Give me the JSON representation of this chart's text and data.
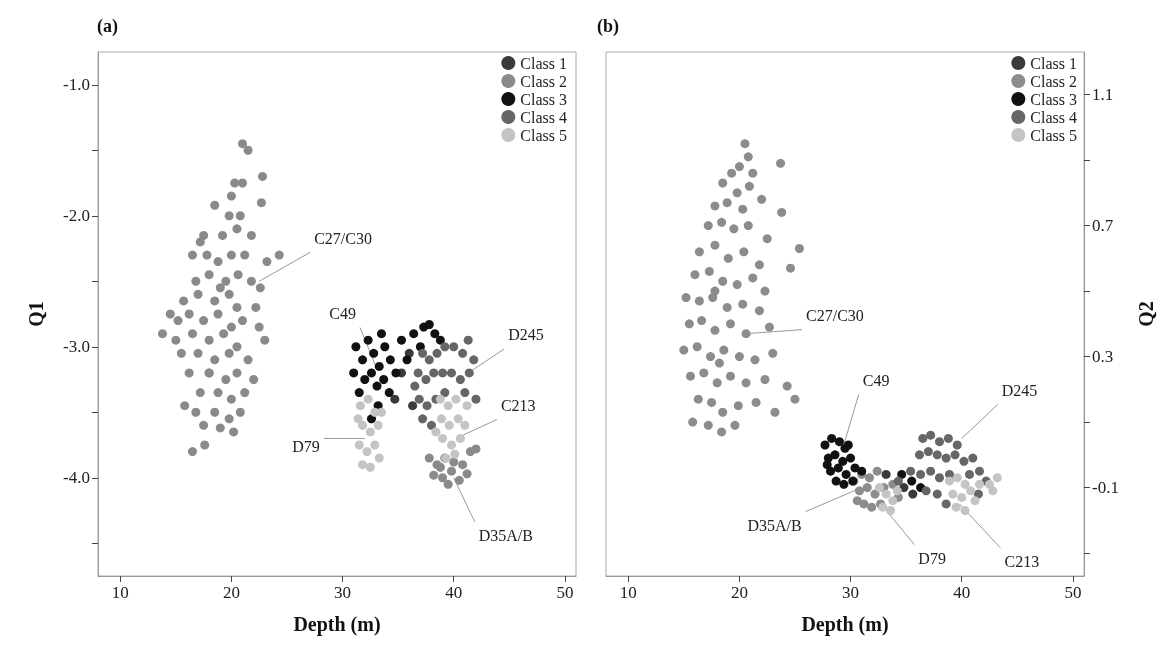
{
  "chart_data": [
    {
      "type": "scatter",
      "title": "(a)",
      "xlabel": "Depth (m)",
      "ylabel": "Q1",
      "legend": "top right",
      "marker": "circle",
      "xlim": [
        8,
        51
      ],
      "xticks": [
        10,
        20,
        30,
        40,
        50
      ],
      "ylim": [
        -4.75,
        -0.75
      ],
      "yticks": [
        {
          "value": -1,
          "label": "-1.0"
        },
        {
          "value": -1.5,
          "label": null
        },
        {
          "value": -2,
          "label": "-2.0"
        },
        {
          "value": -2.5,
          "label": null
        },
        {
          "value": -3,
          "label": "-3.0"
        },
        {
          "value": -3.5,
          "label": null
        },
        {
          "value": -4,
          "label": "-4.0"
        },
        {
          "value": -4.5,
          "label": null
        }
      ],
      "series": [
        {
          "name": "Class 1",
          "color": "#3a3a3a",
          "x": [
            35.3,
            36,
            34.7,
            36.3
          ],
          "values": [
            -3.2,
            -3.05,
            -3.4,
            -3.45
          ]
        },
        {
          "name": "Class 2",
          "color": "#8a8a8a",
          "x": [
            21,
            21.5,
            20.3,
            21,
            22.8,
            20,
            22.7,
            18.5,
            19.8,
            20.8,
            17.2,
            19.2,
            20.5,
            21.8,
            16.5,
            17.8,
            18.8,
            20,
            21.2,
            23.2,
            24.3,
            16.8,
            18,
            19.5,
            20.6,
            21.8,
            22.6,
            15.7,
            17,
            18.5,
            19.8,
            20.5,
            22.2,
            14.5,
            15.2,
            16.2,
            17.5,
            18.8,
            20,
            21,
            22.5,
            13.8,
            15,
            16.5,
            18,
            19.3,
            20.5,
            23,
            15.5,
            17,
            18.5,
            19.8,
            21.5,
            16.2,
            18,
            19.5,
            20.5,
            22,
            17.2,
            18.8,
            20,
            21.2,
            16.8,
            18.5,
            19.8,
            20.8,
            15.8,
            17.5,
            19,
            20.2,
            16.5,
            17.6,
            18,
            19,
            17.5,
            37.8,
            38.5,
            39.2,
            40,
            40.8,
            41.5,
            38.2,
            39,
            39.8,
            40.5,
            41.2,
            39.5,
            38.8,
            42
          ],
          "values": [
            -1.45,
            -1.5,
            -1.75,
            -1.75,
            -1.7,
            -1.85,
            -1.9,
            -1.92,
            -2,
            -2,
            -2.2,
            -2.15,
            -2.1,
            -2.15,
            -2.3,
            -2.3,
            -2.35,
            -2.3,
            -2.3,
            -2.35,
            -2.3,
            -2.5,
            -2.45,
            -2.5,
            -2.45,
            -2.5,
            -2.55,
            -2.65,
            -2.6,
            -2.65,
            -2.6,
            -2.7,
            -2.7,
            -2.75,
            -2.8,
            -2.75,
            -2.8,
            -2.75,
            -2.85,
            -2.8,
            -2.85,
            -2.9,
            -2.95,
            -2.9,
            -2.95,
            -2.9,
            -3,
            -2.95,
            -3.05,
            -3.05,
            -3.1,
            -3.05,
            -3.1,
            -3.2,
            -3.2,
            -3.25,
            -3.2,
            -3.25,
            -3.35,
            -3.35,
            -3.4,
            -3.35,
            -3.5,
            -3.5,
            -3.55,
            -3.5,
            -3.45,
            -3.6,
            -3.62,
            -3.65,
            -3.8,
            -3.75,
            -3.2,
            -2.55,
            -2.15,
            -3.85,
            -3.9,
            -3.85,
            -3.88,
            -3.9,
            -3.8,
            -3.98,
            -4,
            -3.95,
            -4.02,
            -3.97,
            -4.05,
            -3.92,
            -3.78
          ]
        },
        {
          "name": "Class 3",
          "color": "#111111",
          "x": [
            31.2,
            31.8,
            32.3,
            32.8,
            33.3,
            33.8,
            34.3,
            34.8,
            32,
            32.6,
            33.1,
            33.7,
            34.2,
            31.5,
            33.2,
            32.6,
            35.3,
            36.4,
            37.3,
            37.8,
            38.3,
            37,
            38.8,
            35.8,
            31,
            33.5
          ],
          "values": [
            -3,
            -3.1,
            -2.95,
            -3.05,
            -3.15,
            -3,
            -3.1,
            -3.2,
            -3.25,
            -3.2,
            -3.3,
            -3.25,
            -3.35,
            -3.35,
            -3.45,
            -3.55,
            -2.95,
            -2.9,
            -2.85,
            -2.83,
            -2.9,
            -3,
            -2.95,
            -3.1,
            -3.2,
            -2.9
          ]
        },
        {
          "name": "Class 4",
          "color": "#666666",
          "x": [
            37.2,
            37.8,
            38.5,
            39.2,
            40,
            40.8,
            41.3,
            36.8,
            37.5,
            38.2,
            39,
            39.8,
            40.6,
            41.4,
            36.9,
            37.6,
            38.4,
            39.2,
            41,
            37.2,
            38,
            36.5,
            41.8,
            42
          ],
          "values": [
            -3.05,
            -3.1,
            -3.05,
            -3,
            -3,
            -3.05,
            -2.95,
            -3.2,
            -3.25,
            -3.2,
            -3.2,
            -3.2,
            -3.25,
            -3.2,
            -3.4,
            -3.45,
            -3.4,
            -3.35,
            -3.35,
            -3.55,
            -3.6,
            -3.3,
            -3.1,
            -3.4
          ]
        },
        {
          "name": "Class 5",
          "color": "#c4c4c4",
          "x": [
            31.6,
            32.3,
            32.9,
            31.8,
            32.5,
            33.2,
            31.5,
            32.2,
            32.9,
            31.8,
            32.5,
            33.3,
            33.5,
            31.4,
            38.8,
            39.5,
            40.2,
            38.9,
            39.6,
            40.4,
            39,
            39.8,
            40.6,
            39.3,
            40.1,
            41,
            38.4,
            41.2
          ],
          "values": [
            -3.45,
            -3.4,
            -3.5,
            -3.6,
            -3.65,
            -3.6,
            -3.75,
            -3.8,
            -3.75,
            -3.9,
            -3.92,
            -3.85,
            -3.5,
            -3.55,
            -3.4,
            -3.45,
            -3.4,
            -3.55,
            -3.6,
            -3.55,
            -3.7,
            -3.75,
            -3.7,
            -3.85,
            -3.82,
            -3.6,
            -3.65,
            -3.45
          ]
        }
      ],
      "annotations": [
        {
          "text": "C27/C30",
          "x": 22.5,
          "y": -2.5
        },
        {
          "text": "C49",
          "x": 33,
          "y": -3.15
        },
        {
          "text": "D245",
          "x": 41.3,
          "y": -3.2
        },
        {
          "text": "C213",
          "x": 40.2,
          "y": -3.7
        },
        {
          "text": "D79",
          "x": 32,
          "y": -3.7
        },
        {
          "text": "D35A/B",
          "x": 40,
          "y": -4
        }
      ]
    },
    {
      "type": "scatter",
      "title": "(b)",
      "xlabel": "Depth (m)",
      "ylabel": "Q2",
      "legend": "top right",
      "marker": "circle",
      "xlim": [
        8,
        51
      ],
      "xticks": [
        10,
        20,
        30,
        40,
        50
      ],
      "ylim": [
        -0.37,
        1.23
      ],
      "yticks": [
        {
          "value": 1.1,
          "label": "1.1"
        },
        {
          "value": 0.9,
          "label": null
        },
        {
          "value": 0.7,
          "label": "0.7"
        },
        {
          "value": 0.5,
          "label": null
        },
        {
          "value": 0.3,
          "label": "0.3"
        },
        {
          "value": 0.1,
          "label": null
        },
        {
          "value": -0.1,
          "label": "-0.1"
        },
        {
          "value": -0.3,
          "label": null
        }
      ],
      "series": [
        {
          "name": "Class 1",
          "color": "#3a3a3a",
          "x": [
            34.8,
            35.6,
            33.2
          ],
          "values": [
            -0.1,
            -0.12,
            -0.06
          ]
        },
        {
          "name": "Class 2",
          "color": "#8c8c8c",
          "x": [
            20.5,
            20.8,
            20,
            19.3,
            21.2,
            23.7,
            18.5,
            19.8,
            20.9,
            17.8,
            18.9,
            20.3,
            22,
            23.8,
            17.2,
            18.4,
            19.5,
            20.8,
            22.5,
            25.4,
            16.4,
            17.8,
            19,
            20.4,
            21.8,
            24.6,
            16,
            17.3,
            18.5,
            19.8,
            21.2,
            22.3,
            15.2,
            16.4,
            17.6,
            18.9,
            20.3,
            21.8,
            15.5,
            16.6,
            17.8,
            19.2,
            20.6,
            22.7,
            15,
            16.2,
            17.4,
            18.6,
            20,
            21.4,
            23,
            15.6,
            16.8,
            18,
            19.2,
            20.6,
            22.3,
            24.3,
            16.3,
            17.5,
            18.5,
            19.9,
            21.5,
            25,
            15.8,
            17.2,
            18.4,
            19.6,
            23.2,
            17.8,
            18.2,
            30.3,
            31,
            31.7,
            32.4,
            30.8,
            31.5,
            32.2,
            33,
            33.8,
            31.2,
            31.9,
            32.7,
            30.6,
            34.3
          ],
          "values": [
            0.95,
            0.91,
            0.88,
            0.86,
            0.86,
            0.89,
            0.83,
            0.8,
            0.82,
            0.76,
            0.77,
            0.75,
            0.78,
            0.74,
            0.7,
            0.71,
            0.69,
            0.7,
            0.66,
            0.63,
            0.62,
            0.64,
            0.6,
            0.62,
            0.58,
            0.57,
            0.55,
            0.56,
            0.53,
            0.52,
            0.54,
            0.5,
            0.48,
            0.47,
            0.48,
            0.45,
            0.46,
            0.44,
            0.4,
            0.41,
            0.38,
            0.4,
            0.37,
            0.39,
            0.32,
            0.33,
            0.3,
            0.32,
            0.3,
            0.29,
            0.31,
            0.24,
            0.25,
            0.22,
            0.24,
            0.22,
            0.23,
            0.21,
            0.17,
            0.16,
            0.13,
            0.15,
            0.16,
            0.17,
            0.1,
            0.09,
            0.07,
            0.09,
            0.13,
            0.5,
            0.28,
            -0.08,
            -0.06,
            -0.07,
            -0.05,
            -0.11,
            -0.1,
            -0.12,
            -0.1,
            -0.09,
            -0.15,
            -0.16,
            -0.15,
            -0.14,
            -0.13
          ]
        },
        {
          "name": "Class 3",
          "color": "#111111",
          "x": [
            27.7,
            28.3,
            29,
            29.5,
            28,
            28.6,
            29.3,
            30,
            28.2,
            28.9,
            29.6,
            30.4,
            28.7,
            29.4,
            30.2,
            31,
            29.8,
            27.9,
            34.6,
            35.5,
            36.3
          ],
          "values": [
            0.03,
            0.05,
            0.04,
            0.02,
            -0.01,
            0,
            -0.02,
            -0.01,
            -0.05,
            -0.04,
            -0.06,
            -0.04,
            -0.08,
            -0.09,
            -0.08,
            -0.05,
            0.03,
            -0.03,
            -0.06,
            -0.08,
            -0.1
          ]
        },
        {
          "name": "Class 4",
          "color": "#666666",
          "x": [
            36.5,
            37.2,
            38,
            38.8,
            39.6,
            36.2,
            37,
            37.8,
            38.6,
            39.4,
            40.2,
            41,
            35.4,
            36.3,
            37.2,
            38,
            38.9,
            40.7,
            41.6,
            42.2,
            34.3,
            36.8,
            37.8,
            38.6,
            41.5
          ],
          "values": [
            0.05,
            0.06,
            0.04,
            0.05,
            0.03,
            0,
            0.01,
            0,
            -0.01,
            0,
            -0.02,
            -0.01,
            -0.05,
            -0.06,
            -0.05,
            -0.07,
            -0.06,
            -0.06,
            -0.05,
            -0.08,
            -0.08,
            -0.11,
            -0.12,
            -0.15,
            -0.12
          ]
        },
        {
          "name": "Class 5",
          "color": "#c4c4c4",
          "x": [
            32.6,
            33.2,
            33.8,
            32.9,
            33.6,
            34.2,
            38.9,
            39.6,
            40.3,
            39.2,
            40,
            40.8,
            39.5,
            40.3,
            41.2,
            42.5,
            43.2,
            42.8,
            41.6
          ],
          "values": [
            -0.1,
            -0.12,
            -0.14,
            -0.16,
            -0.17,
            -0.11,
            -0.08,
            -0.07,
            -0.09,
            -0.12,
            -0.13,
            -0.11,
            -0.16,
            -0.17,
            -0.14,
            -0.09,
            -0.07,
            -0.11,
            -0.09
          ]
        }
      ],
      "annotations": [
        {
          "text": "C27/C30",
          "x": 20.6,
          "y": 0.37
        },
        {
          "text": "C49",
          "x": 29.3,
          "y": 0.02
        },
        {
          "text": "D245",
          "x": 40,
          "y": 0.05
        },
        {
          "text": "D35A/B",
          "x": 31,
          "y": -0.1
        },
        {
          "text": "D79",
          "x": 32.5,
          "y": -0.14
        },
        {
          "text": "C213",
          "x": 39.8,
          "y": -0.15
        }
      ]
    }
  ]
}
